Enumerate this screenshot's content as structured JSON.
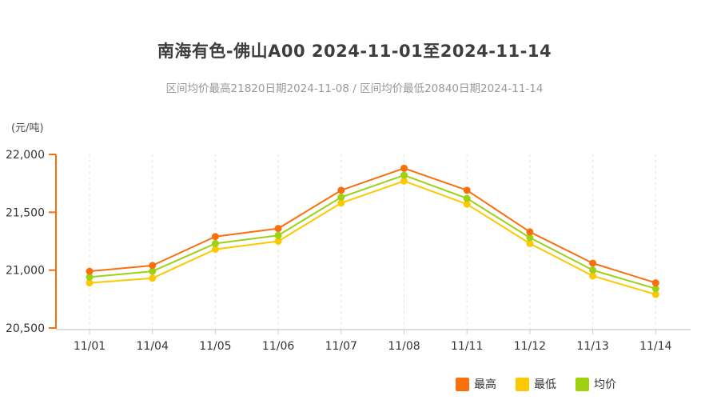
{
  "page": {
    "title": "南海有色-佛山A00 2024-11-01至2024-11-14",
    "subtitle": "区间均价最高21820日期2024-11-08 / 区间均价最低20840日期2024-11-14",
    "unit_label": "(元/吨)"
  },
  "colors": {
    "high": "#fa6e0d",
    "low": "#fcc800",
    "avg": "#9dd112",
    "y_axis": "#fa6e0d",
    "x_axis": "#dcdcdc",
    "x_tick": "#cccccc",
    "gridline": "#e0e0e0",
    "tick_text": "#333333",
    "title_text": "#3d3d3d",
    "subtitle_text": "#999999"
  },
  "chart_data": {
    "type": "line",
    "title": "南海有色-佛山A00 2024-11-01至2024-11-14",
    "subtitle": "区间均价最高21820日期2024-11-08 / 区间均价最低20840日期2024-11-14",
    "ylabel": "(元/吨)",
    "categories": [
      "11/01",
      "11/04",
      "11/05",
      "11/06",
      "11/07",
      "11/08",
      "11/11",
      "11/12",
      "11/13",
      "11/14"
    ],
    "series": [
      {
        "key": "high",
        "name": "最高",
        "color": "#fa6e0d",
        "z": 3,
        "values": [
          20990,
          21040,
          21290,
          21360,
          21690,
          21880,
          21690,
          21330,
          21060,
          20890
        ]
      },
      {
        "key": "low",
        "name": "最低",
        "color": "#fcc800",
        "z": 1,
        "values": [
          20890,
          20930,
          21180,
          21250,
          21580,
          21770,
          21570,
          21230,
          20950,
          20790
        ]
      },
      {
        "key": "avg",
        "name": "均价",
        "color": "#9dd112",
        "z": 2,
        "values": [
          20940,
          20990,
          21230,
          21300,
          21630,
          21820,
          21620,
          21280,
          21000,
          20840
        ]
      }
    ],
    "ylim": [
      20500,
      22000
    ],
    "yticks": [
      22000,
      21500,
      21000,
      20500
    ],
    "ytick_labels": [
      "22,000",
      "21,500",
      "21,000",
      "20,500"
    ],
    "grid": "vertical-dashed",
    "legend_position": "bottom-right",
    "annotations": {
      "max_avg": {
        "value": 21820,
        "date": "2024-11-08"
      },
      "min_avg": {
        "value": 20840,
        "date": "2024-11-14"
      }
    }
  }
}
